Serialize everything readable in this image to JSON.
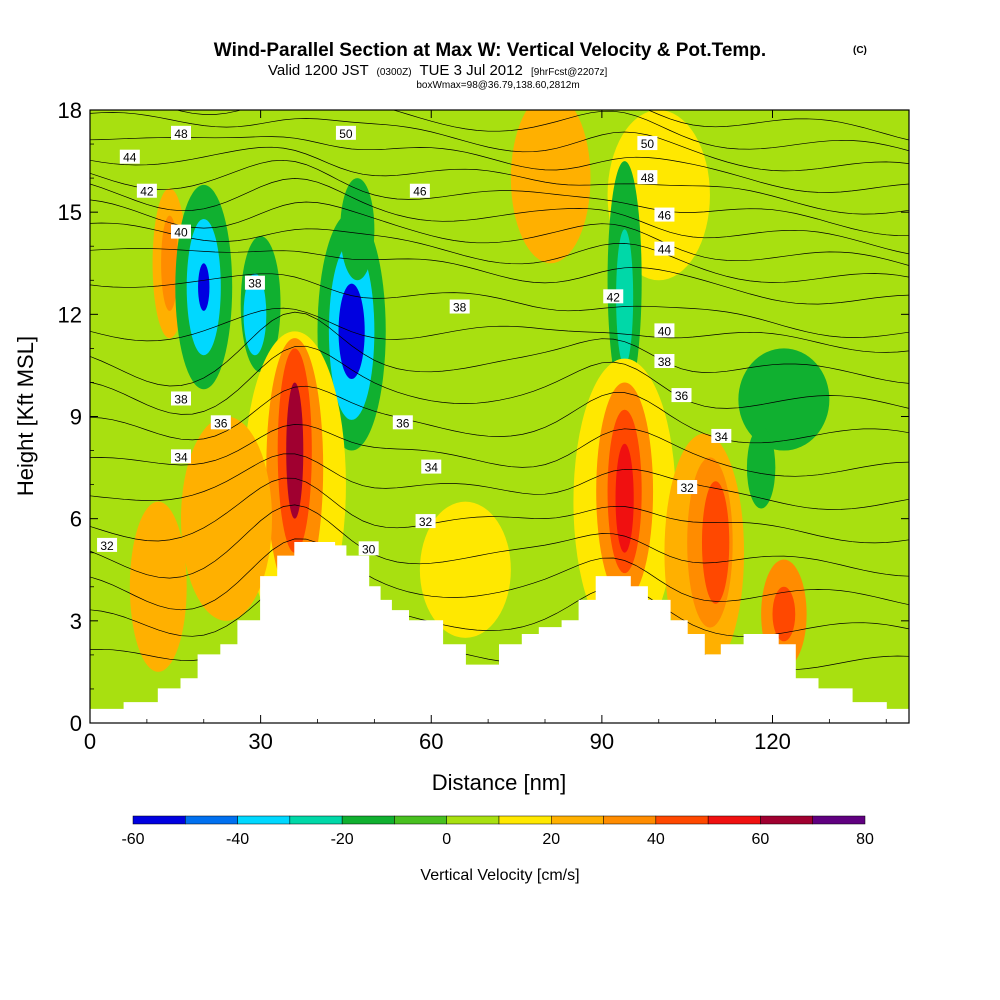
{
  "chart_data": {
    "type": "heatmap",
    "title": "Wind-Parallel Section at Max W: Vertical Velocity & Pot.Temp.",
    "title_mark": "(C)",
    "subtitle": {
      "valid": "Valid 1200 JST",
      "utc": "(0300Z)",
      "date": "TUE 3 Jul 2012",
      "forecast": "[9hrFcst@2207z]"
    },
    "box_info": "boxWmax=98@36.79,138.60,2812m",
    "xlabel": "Distance [nm]",
    "ylabel": "Height [Kft MSL]",
    "xlim": [
      0,
      144
    ],
    "ylim": [
      0,
      18
    ],
    "xticks": [
      "0",
      "30",
      "60",
      "90",
      "120"
    ],
    "yticks": [
      "0",
      "3",
      "6",
      "9",
      "12",
      "15",
      "18"
    ],
    "colorbar": {
      "title": "Vertical Velocity [cm/s]",
      "levels": [
        -60,
        -50,
        -40,
        -30,
        -20,
        -10,
        0,
        10,
        20,
        30,
        40,
        50,
        60,
        70,
        80
      ],
      "tick_labels": [
        "-60",
        "-40",
        "-20",
        "0",
        "20",
        "40",
        "60",
        "80"
      ],
      "colors": [
        "#0000e0",
        "#0070f0",
        "#00d8ff",
        "#00d8a8",
        "#10b030",
        "#48c020",
        "#a8e010",
        "#ffe800",
        "#ffb000",
        "#ff8c00",
        "#ff4800",
        "#f01010",
        "#a00030",
        "#600080"
      ]
    },
    "background_color": "#a8e010",
    "velocity_cells": [
      {
        "x": 14,
        "y": 13.5,
        "rx": 3,
        "ry": 2.2,
        "w": 20
      },
      {
        "x": 14,
        "y": 13.5,
        "rx": 1.5,
        "ry": 1.4,
        "w": 35
      },
      {
        "x": 20,
        "y": 12.8,
        "rx": 5,
        "ry": 3.0,
        "w": -20
      },
      {
        "x": 20,
        "y": 12.8,
        "rx": 3,
        "ry": 2.0,
        "w": -35
      },
      {
        "x": 20,
        "y": 12.8,
        "rx": 1,
        "ry": 0.7,
        "w": -55
      },
      {
        "x": 30,
        "y": 12.3,
        "rx": 3.5,
        "ry": 2.0,
        "w": -15
      },
      {
        "x": 29,
        "y": 12.0,
        "rx": 2,
        "ry": 1.2,
        "w": -35
      },
      {
        "x": 46,
        "y": 11.5,
        "rx": 6,
        "ry": 3.5,
        "w": -15
      },
      {
        "x": 46,
        "y": 11.5,
        "rx": 4,
        "ry": 2.6,
        "w": -35
      },
      {
        "x": 46,
        "y": 11.5,
        "rx": 2.3,
        "ry": 1.4,
        "w": -55
      },
      {
        "x": 47,
        "y": 14.5,
        "rx": 3,
        "ry": 1.5,
        "w": -15
      },
      {
        "x": 81,
        "y": 16.0,
        "rx": 7,
        "ry": 2.5,
        "w": 20
      },
      {
        "x": 100,
        "y": 15.5,
        "rx": 9,
        "ry": 2.5,
        "w": 15
      },
      {
        "x": 94,
        "y": 13.0,
        "rx": 3,
        "ry": 3.5,
        "w": -15
      },
      {
        "x": 94,
        "y": 12.5,
        "rx": 1.5,
        "ry": 2.0,
        "w": -25
      },
      {
        "x": 122,
        "y": 9.5,
        "rx": 8,
        "ry": 1.5,
        "w": -12
      },
      {
        "x": 118,
        "y": 7.5,
        "rx": 2.5,
        "ry": 1.2,
        "w": -20
      },
      {
        "x": 36,
        "y": 7.0,
        "rx": 9,
        "ry": 4.5,
        "w": 15
      },
      {
        "x": 36,
        "y": 7.5,
        "rx": 5,
        "ry": 3.8,
        "w": 30
      },
      {
        "x": 36,
        "y": 8.0,
        "rx": 3,
        "ry": 3.0,
        "w": 45
      },
      {
        "x": 36,
        "y": 8.0,
        "rx": 1.5,
        "ry": 2.0,
        "w": 65
      },
      {
        "x": 24,
        "y": 6.0,
        "rx": 8,
        "ry": 3.0,
        "w": 20
      },
      {
        "x": 12,
        "y": 4.0,
        "rx": 5,
        "ry": 2.5,
        "w": 20
      },
      {
        "x": 94,
        "y": 6.5,
        "rx": 9,
        "ry": 4.2,
        "w": 15
      },
      {
        "x": 94,
        "y": 6.8,
        "rx": 5,
        "ry": 3.2,
        "w": 30
      },
      {
        "x": 94,
        "y": 6.8,
        "rx": 3,
        "ry": 2.4,
        "w": 45
      },
      {
        "x": 94,
        "y": 6.6,
        "rx": 1.6,
        "ry": 1.6,
        "w": 58
      },
      {
        "x": 108,
        "y": 5.0,
        "rx": 7,
        "ry": 3.5,
        "w": 20
      },
      {
        "x": 109,
        "y": 5.3,
        "rx": 4,
        "ry": 2.5,
        "w": 30
      },
      {
        "x": 110,
        "y": 5.3,
        "rx": 2.4,
        "ry": 1.8,
        "w": 45
      },
      {
        "x": 122,
        "y": 3.2,
        "rx": 4,
        "ry": 1.6,
        "w": 30
      },
      {
        "x": 122,
        "y": 3.2,
        "rx": 2,
        "ry": 0.8,
        "w": 40
      },
      {
        "x": 66,
        "y": 4.5,
        "rx": 8,
        "ry": 2.0,
        "w": 15
      }
    ],
    "terrain": [
      [
        0,
        0.4
      ],
      [
        6,
        0.4
      ],
      [
        6,
        0.6
      ],
      [
        12,
        0.6
      ],
      [
        12,
        1.0
      ],
      [
        16,
        1.0
      ],
      [
        16,
        1.3
      ],
      [
        19,
        1.3
      ],
      [
        19,
        2.0
      ],
      [
        23,
        2.0
      ],
      [
        23,
        2.3
      ],
      [
        26,
        2.3
      ],
      [
        26,
        3.0
      ],
      [
        30,
        3.0
      ],
      [
        30,
        4.3
      ],
      [
        33,
        4.3
      ],
      [
        33,
        4.9
      ],
      [
        36,
        4.9
      ],
      [
        36,
        5.3
      ],
      [
        43,
        5.3
      ],
      [
        43,
        5.2
      ],
      [
        45,
        5.2
      ],
      [
        45,
        4.9
      ],
      [
        49,
        4.9
      ],
      [
        49,
        4.0
      ],
      [
        51,
        4.0
      ],
      [
        51,
        3.6
      ],
      [
        53,
        3.6
      ],
      [
        53,
        3.3
      ],
      [
        56,
        3.3
      ],
      [
        56,
        3.0
      ],
      [
        62,
        3.0
      ],
      [
        62,
        2.3
      ],
      [
        66,
        2.3
      ],
      [
        66,
        1.7
      ],
      [
        72,
        1.7
      ],
      [
        72,
        2.3
      ],
      [
        76,
        2.3
      ],
      [
        76,
        2.6
      ],
      [
        79,
        2.6
      ],
      [
        79,
        2.8
      ],
      [
        83,
        2.8
      ],
      [
        83,
        3.0
      ],
      [
        86,
        3.0
      ],
      [
        86,
        3.6
      ],
      [
        89,
        3.6
      ],
      [
        89,
        4.3
      ],
      [
        95,
        4.3
      ],
      [
        95,
        4.0
      ],
      [
        98,
        4.0
      ],
      [
        98,
        3.6
      ],
      [
        102,
        3.6
      ],
      [
        102,
        3.0
      ],
      [
        105,
        3.0
      ],
      [
        105,
        2.6
      ],
      [
        108,
        2.6
      ],
      [
        108,
        2.0
      ],
      [
        111,
        2.0
      ],
      [
        111,
        2.3
      ],
      [
        115,
        2.3
      ],
      [
        115,
        2.6
      ],
      [
        121,
        2.6
      ],
      [
        121,
        2.3
      ],
      [
        124,
        2.3
      ],
      [
        124,
        1.3
      ],
      [
        128,
        1.3
      ],
      [
        128,
        1.0
      ],
      [
        134,
        1.0
      ],
      [
        134,
        0.6
      ],
      [
        140,
        0.6
      ],
      [
        140,
        0.4
      ],
      [
        144,
        0.4
      ]
    ],
    "theta_contours": [
      {
        "level": "50",
        "label_x": 45,
        "label_y": 17.3,
        "label_x2": 98,
        "label_y2": 17.0
      },
      {
        "level": "48",
        "label_x": 16,
        "label_y": 17.3,
        "label_x2": 98,
        "label_y2": 16.0
      },
      {
        "level": "46",
        "label_x": 58,
        "label_y": 15.6,
        "label_x2": 101,
        "label_y2": 14.9
      },
      {
        "level": "44",
        "label_x": 7,
        "label_y": 16.6,
        "label_x2": 101,
        "label_y2": 13.9
      },
      {
        "level": "42",
        "label_x": 10,
        "label_y": 15.6,
        "label_x2": 92,
        "label_y2": 12.5
      },
      {
        "level": "40",
        "label_x": 16,
        "label_y": 14.4,
        "label_x2": 101,
        "label_y2": 11.5
      },
      {
        "level": "38",
        "label_x": 29,
        "label_y": 12.9,
        "label_x2": 65,
        "label_y2": 12.2
      },
      {
        "level": "36",
        "label_x": 23,
        "label_y": 8.8,
        "label_x2": 55,
        "label_y2": 8.8
      },
      {
        "level": "34",
        "label_x": 16,
        "label_y": 7.8,
        "label_x2": 60,
        "label_y2": 7.5
      },
      {
        "level": "32",
        "label_x": 3,
        "label_y": 5.2,
        "label_x2": 59,
        "label_y2": 5.9
      },
      {
        "level": "30",
        "label_x": 49,
        "label_y": 5.1,
        "label_x2": -10,
        "label_y2": -10
      }
    ],
    "extra_contour_labels": [
      {
        "level": "38",
        "x": 16,
        "y": 9.5
      },
      {
        "level": "38",
        "x": 101,
        "y": 10.6
      },
      {
        "level": "36",
        "x": 104,
        "y": 9.6
      },
      {
        "level": "34",
        "x": 111,
        "y": 8.4
      },
      {
        "level": "32",
        "x": 105,
        "y": 6.9
      }
    ]
  }
}
